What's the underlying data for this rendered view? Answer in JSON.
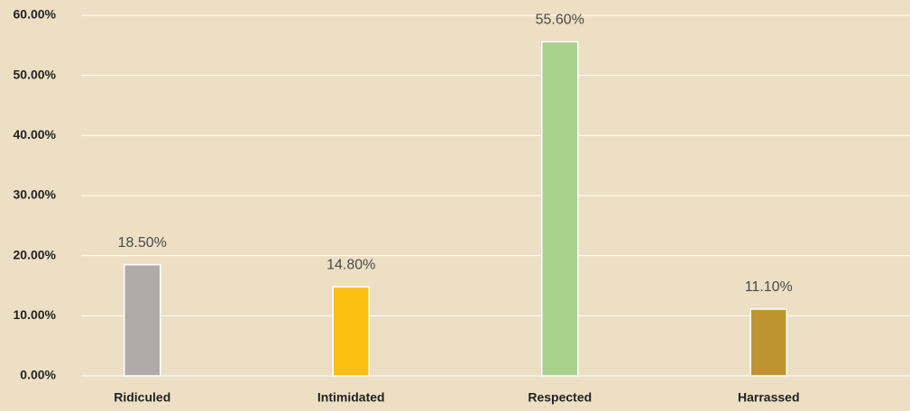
{
  "chart_data": {
    "type": "bar",
    "categories": [
      "Ridiculed",
      "Intimidated",
      "Respected",
      "Harrassed"
    ],
    "values": [
      18.5,
      14.8,
      55.6,
      11.1
    ],
    "value_labels": [
      "18.50%",
      "14.80%",
      "55.60%",
      "11.10%"
    ],
    "colors": [
      "#b0aba8",
      "#fbbf12",
      "#a9d18e",
      "#bf9430"
    ],
    "ylim": [
      0,
      60
    ],
    "yticks": [
      {
        "value": 0,
        "label": "0.00%"
      },
      {
        "value": 10,
        "label": "10.00%"
      },
      {
        "value": 20,
        "label": "20.00%"
      },
      {
        "value": 30,
        "label": "30.00%"
      },
      {
        "value": 40,
        "label": "40.00%"
      },
      {
        "value": 50,
        "label": "50.00%"
      },
      {
        "value": 60,
        "label": "60.00%"
      }
    ],
    "grid": true
  }
}
